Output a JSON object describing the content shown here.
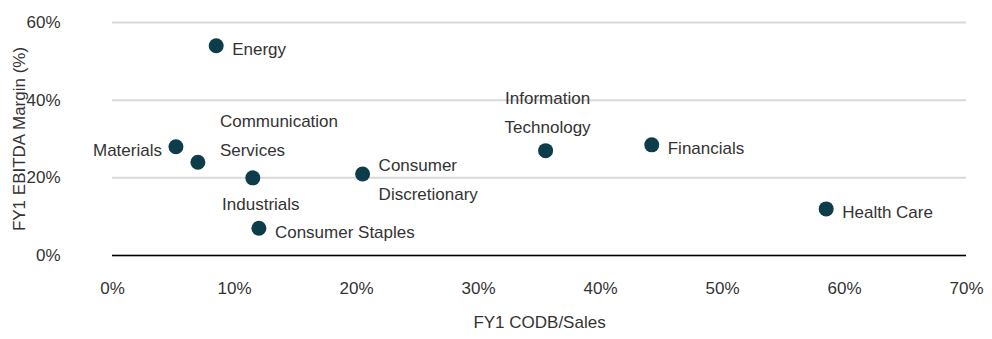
{
  "chart_data": {
    "type": "scatter",
    "x_label": "FY1 CODB/Sales",
    "y_label": "FY1 EBITDA Margin (%)",
    "labels": [
      "Energy",
      "Materials",
      "Communication Services",
      "Industrials",
      "Consumer Staples",
      "Consumer Discretionary",
      "Information Technology",
      "Financials",
      "Health Care"
    ],
    "x": [
      8.5,
      5.2,
      7.0,
      11.5,
      12.0,
      20.5,
      35.5,
      44.2,
      58.5
    ],
    "values": [
      54,
      28,
      24,
      20,
      7,
      21,
      27,
      28.5,
      12
    ],
    "color": "#0d3d4a",
    "xlim": [
      0,
      70
    ],
    "xticks": [
      {
        "value": 0,
        "label": "0%"
      },
      {
        "value": 10,
        "label": "10%"
      },
      {
        "value": 20,
        "label": "20%"
      },
      {
        "value": 30,
        "label": "30%"
      },
      {
        "value": 40,
        "label": "40%"
      },
      {
        "value": 50,
        "label": "50%"
      },
      {
        "value": 60,
        "label": "60%"
      },
      {
        "value": 70,
        "label": "70%"
      }
    ],
    "ylim": [
      0,
      60
    ],
    "yticks": [
      {
        "value": 0,
        "label": "0%"
      },
      {
        "value": 20,
        "label": "20%"
      },
      {
        "value": 40,
        "label": "40%"
      },
      {
        "value": 60,
        "label": "60%"
      }
    ],
    "grid": true
  }
}
